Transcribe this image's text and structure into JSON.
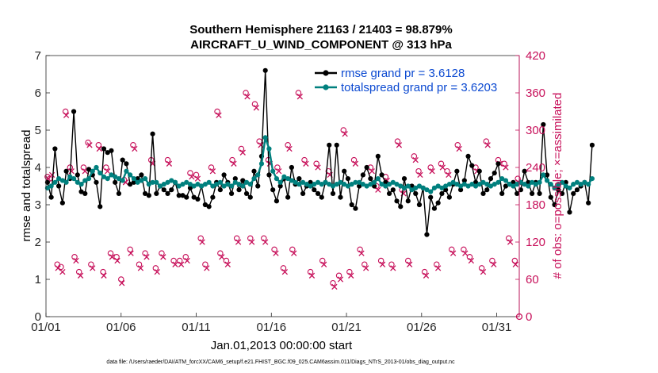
{
  "colors": {
    "rmse": "#000000",
    "spread": "#00807e",
    "obs": "#c7105a",
    "legend_text": "#0b49d1",
    "right_axis": "#c7105a"
  },
  "chart_data": {
    "type": "line",
    "title": "Southern Hemisphere 21163 / 21403 = 98.879%",
    "subtitle": "AIRCRAFT_U_WIND_COMPONENT @ 313 hPa",
    "xlabel": "Jan.01,2013 00:00:00 start",
    "ylabel": "rmse and totalspread",
    "ylabel_right": "# of obs: o=possible; ×=assimilated",
    "footnote": "data file: /Users/raeder/DAI/ATM_forcXX/CAM6_setup/f.e21.FHIST_BGC.f09_025.CAM6assim.011/Diags_NTrS_2013-01/obs_diag_output.nc",
    "xlim": [
      0,
      31.5
    ],
    "ylim": [
      0,
      7
    ],
    "ylim_right": [
      0,
      420
    ],
    "x_ticks": [
      0,
      5,
      10,
      15,
      20,
      25,
      30
    ],
    "x_tick_labels": [
      "01/01",
      "01/06",
      "01/11",
      "01/16",
      "01/21",
      "01/26",
      "01/31"
    ],
    "y_ticks": [
      0,
      1,
      2,
      3,
      4,
      5,
      6,
      7
    ],
    "y_tick_labels": [
      "0",
      "1",
      "2",
      "3",
      "4",
      "5",
      "6",
      "7"
    ],
    "y_right_ticks": [
      0,
      60,
      120,
      180,
      240,
      300,
      360,
      420
    ],
    "y_right_tick_labels": [
      "0",
      "60",
      "120",
      "180",
      "240",
      "300",
      "360",
      "420"
    ],
    "time_step_days": 0.25,
    "series": [
      {
        "name": "rmse grand pr = 3.6128",
        "values": [
          3.6,
          3.2,
          4.5,
          3.5,
          3.05,
          3.9,
          3.7,
          5.5,
          3.8,
          3.35,
          3.3,
          3.95,
          3.8,
          3.6,
          2.95,
          4.5,
          4.4,
          4.45,
          3.6,
          3.3,
          4.2,
          4.1,
          3.55,
          3.6,
          3.7,
          3.8,
          3.3,
          3.25,
          4.9,
          3.3,
          3.5,
          3.4,
          3.3,
          3.4,
          3.6,
          3.25,
          3.25,
          3.2,
          3.45,
          3.2,
          3.15,
          3.5,
          3.0,
          2.95,
          3.2,
          3.6,
          3.4,
          3.8,
          3.6,
          3.3,
          3.7,
          3.4,
          3.65,
          3.3,
          3.2,
          3.9,
          3.5,
          4.3,
          6.6,
          3.8,
          3.4,
          3.1,
          3.5,
          3.7,
          3.2,
          4.0,
          3.55,
          3.7,
          3.3,
          3.5,
          3.6,
          3.4,
          3.3,
          3.2,
          3.6,
          4.6,
          3.3,
          4.6,
          3.2,
          3.9,
          3.7,
          3.0,
          2.9,
          3.5,
          3.8,
          4.0,
          3.7,
          3.5,
          4.3,
          3.8,
          3.6,
          3.3,
          3.4,
          3.1,
          2.95,
          3.7,
          3.1,
          3.5,
          3.3,
          3.0,
          3.45,
          2.2,
          3.2,
          2.9,
          3.05,
          3.3,
          3.4,
          3.2,
          3.55,
          3.9,
          3.4,
          3.65,
          4.3,
          4.05,
          3.6,
          3.9,
          3.3,
          3.4,
          3.7,
          3.85,
          4.1,
          3.3,
          3.5,
          3.55,
          3.6,
          3.3,
          3.4,
          3.9,
          3.6,
          3.3,
          3.6,
          3.3,
          5.15,
          3.8,
          3.2,
          3.0,
          3.4,
          3.3,
          3.6,
          2.8,
          3.3,
          3.4,
          3.5,
          3.6,
          3.05,
          4.6
        ]
      },
      {
        "name": "totalspread grand pr = 3.6203",
        "values": [
          3.45,
          3.5,
          3.6,
          3.7,
          3.65,
          3.6,
          3.75,
          3.7,
          3.6,
          3.55,
          3.65,
          3.7,
          3.9,
          4.0,
          3.85,
          3.75,
          3.7,
          3.8,
          3.75,
          3.7,
          3.65,
          3.9,
          3.8,
          3.7,
          3.6,
          3.65,
          3.7,
          3.55,
          3.6,
          3.6,
          3.5,
          3.55,
          3.6,
          3.65,
          3.6,
          3.5,
          3.55,
          3.6,
          3.55,
          3.5,
          3.55,
          3.5,
          3.55,
          3.6,
          3.5,
          3.55,
          3.6,
          3.5,
          3.55,
          3.5,
          3.6,
          3.55,
          3.5,
          3.6,
          3.55,
          3.7,
          3.8,
          4.1,
          4.8,
          4.5,
          3.9,
          3.7,
          3.6,
          3.75,
          3.7,
          3.65,
          3.6,
          3.55,
          3.6,
          3.55,
          3.5,
          3.55,
          3.6,
          3.55,
          3.6,
          3.55,
          3.5,
          3.55,
          3.6,
          3.55,
          3.5,
          3.55,
          3.6,
          3.6,
          3.55,
          3.5,
          3.55,
          3.6,
          3.7,
          3.55,
          3.5,
          3.55,
          3.6,
          3.55,
          3.5,
          3.45,
          3.5,
          3.4,
          3.45,
          3.5,
          3.45,
          3.4,
          3.35,
          3.45,
          3.5,
          3.45,
          3.5,
          3.55,
          3.6,
          3.55,
          3.5,
          3.55,
          3.5,
          3.55,
          3.5,
          3.55,
          3.6,
          3.55,
          3.5,
          3.55,
          3.6,
          3.7,
          3.65,
          3.55,
          3.5,
          3.55,
          3.6,
          3.55,
          3.5,
          3.6,
          3.55,
          3.6,
          3.8,
          3.65,
          3.55,
          3.45,
          3.55,
          3.6,
          3.5,
          3.45,
          3.55,
          3.6,
          3.55,
          3.6,
          3.55,
          3.7
        ]
      }
    ],
    "obs_possible": [
      [
        0.1,
        225
      ],
      [
        0.25,
        222
      ],
      [
        0.75,
        84
      ],
      [
        1.0,
        80
      ],
      [
        1.3,
        330
      ],
      [
        1.6,
        240
      ],
      [
        1.9,
        96
      ],
      [
        2.2,
        72
      ],
      [
        2.5,
        240
      ],
      [
        2.8,
        280
      ],
      [
        3.0,
        84
      ],
      [
        3.5,
        276
      ],
      [
        3.8,
        72
      ],
      [
        4.0,
        240
      ],
      [
        4.3,
        102
      ],
      [
        4.7,
        96
      ],
      [
        5.0,
        60
      ],
      [
        5.2,
        220
      ],
      [
        5.6,
        108
      ],
      [
        5.8,
        276
      ],
      [
        6.2,
        84
      ],
      [
        6.6,
        102
      ],
      [
        7.0,
        252
      ],
      [
        7.3,
        78
      ],
      [
        7.7,
        102
      ],
      [
        8.1,
        252
      ],
      [
        8.5,
        90
      ],
      [
        8.9,
        90
      ],
      [
        9.3,
        96
      ],
      [
        9.6,
        231
      ],
      [
        10.0,
        228
      ],
      [
        10.3,
        126
      ],
      [
        10.6,
        84
      ],
      [
        11.0,
        240
      ],
      [
        11.4,
        330
      ],
      [
        11.6,
        102
      ],
      [
        12.0,
        90
      ],
      [
        12.4,
        252
      ],
      [
        12.7,
        126
      ],
      [
        13.0,
        270
      ],
      [
        13.3,
        360
      ],
      [
        13.6,
        126
      ],
      [
        13.9,
        342
      ],
      [
        14.2,
        282
      ],
      [
        14.5,
        126
      ],
      [
        14.8,
        252
      ],
      [
        15.2,
        108
      ],
      [
        15.4,
        240
      ],
      [
        15.8,
        78
      ],
      [
        16.1,
        276
      ],
      [
        16.4,
        108
      ],
      [
        16.8,
        360
      ],
      [
        17.2,
        252
      ],
      [
        17.6,
        72
      ],
      [
        18.0,
        246
      ],
      [
        18.4,
        90
      ],
      [
        18.8,
        234
      ],
      [
        19.1,
        54
      ],
      [
        19.5,
        66
      ],
      [
        19.8,
        300
      ],
      [
        20.2,
        72
      ],
      [
        20.5,
        252
      ],
      [
        20.9,
        108
      ],
      [
        21.2,
        84
      ],
      [
        21.6,
        240
      ],
      [
        22.0,
        210
      ],
      [
        22.3,
        90
      ],
      [
        22.6,
        225
      ],
      [
        23.0,
        84
      ],
      [
        23.4,
        282
      ],
      [
        23.7,
        204
      ],
      [
        24.1,
        90
      ],
      [
        24.5,
        258
      ],
      [
        24.8,
        234
      ],
      [
        25.2,
        72
      ],
      [
        25.6,
        240
      ],
      [
        26.0,
        84
      ],
      [
        26.3,
        246
      ],
      [
        26.7,
        234
      ],
      [
        27.0,
        108
      ],
      [
        27.4,
        276
      ],
      [
        27.8,
        108
      ],
      [
        28.2,
        96
      ],
      [
        28.6,
        240
      ],
      [
        29.0,
        78
      ],
      [
        29.3,
        282
      ],
      [
        29.7,
        90
      ],
      [
        30.1,
        252
      ],
      [
        30.5,
        246
      ],
      [
        30.8,
        126
      ],
      [
        31.2,
        90
      ],
      [
        31.4,
        222
      ]
    ],
    "obs_assimilated": [
      [
        0.15,
        222
      ],
      [
        0.4,
        228
      ],
      [
        0.8,
        78
      ],
      [
        1.1,
        72
      ],
      [
        1.35,
        324
      ],
      [
        1.7,
        234
      ],
      [
        2.0,
        90
      ],
      [
        2.3,
        66
      ],
      [
        2.6,
        234
      ],
      [
        2.9,
        276
      ],
      [
        3.1,
        78
      ],
      [
        3.55,
        270
      ],
      [
        3.85,
        66
      ],
      [
        4.1,
        234
      ],
      [
        4.4,
        96
      ],
      [
        4.75,
        90
      ],
      [
        5.05,
        54
      ],
      [
        5.3,
        216
      ],
      [
        5.65,
        102
      ],
      [
        5.9,
        270
      ],
      [
        6.3,
        78
      ],
      [
        6.7,
        96
      ],
      [
        7.1,
        246
      ],
      [
        7.4,
        72
      ],
      [
        7.8,
        96
      ],
      [
        8.2,
        246
      ],
      [
        8.6,
        84
      ],
      [
        9.0,
        84
      ],
      [
        9.4,
        90
      ],
      [
        9.7,
        225
      ],
      [
        10.1,
        222
      ],
      [
        10.4,
        120
      ],
      [
        10.7,
        78
      ],
      [
        11.1,
        234
      ],
      [
        11.5,
        324
      ],
      [
        11.7,
        96
      ],
      [
        12.1,
        84
      ],
      [
        12.5,
        246
      ],
      [
        12.8,
        120
      ],
      [
        13.1,
        264
      ],
      [
        13.4,
        354
      ],
      [
        13.7,
        120
      ],
      [
        14.0,
        336
      ],
      [
        14.3,
        276
      ],
      [
        14.6,
        120
      ],
      [
        14.9,
        246
      ],
      [
        15.3,
        102
      ],
      [
        15.5,
        234
      ],
      [
        15.9,
        72
      ],
      [
        16.2,
        270
      ],
      [
        16.5,
        102
      ],
      [
        16.9,
        354
      ],
      [
        17.3,
        246
      ],
      [
        17.7,
        66
      ],
      [
        18.1,
        240
      ],
      [
        18.5,
        84
      ],
      [
        18.9,
        228
      ],
      [
        19.2,
        48
      ],
      [
        19.6,
        60
      ],
      [
        19.9,
        294
      ],
      [
        20.3,
        66
      ],
      [
        20.6,
        246
      ],
      [
        21.0,
        102
      ],
      [
        21.3,
        78
      ],
      [
        21.7,
        234
      ],
      [
        22.1,
        204
      ],
      [
        22.4,
        84
      ],
      [
        22.7,
        219
      ],
      [
        23.1,
        78
      ],
      [
        23.5,
        276
      ],
      [
        23.8,
        198
      ],
      [
        24.2,
        84
      ],
      [
        24.6,
        252
      ],
      [
        24.9,
        228
      ],
      [
        25.3,
        66
      ],
      [
        25.7,
        234
      ],
      [
        26.1,
        78
      ],
      [
        26.4,
        240
      ],
      [
        26.8,
        228
      ],
      [
        27.1,
        102
      ],
      [
        27.5,
        270
      ],
      [
        27.9,
        102
      ],
      [
        28.3,
        90
      ],
      [
        28.7,
        234
      ],
      [
        29.1,
        72
      ],
      [
        29.4,
        276
      ],
      [
        29.8,
        84
      ],
      [
        30.2,
        246
      ],
      [
        30.6,
        240
      ],
      [
        30.9,
        120
      ],
      [
        31.25,
        84
      ],
      [
        31.45,
        216
      ]
    ]
  }
}
